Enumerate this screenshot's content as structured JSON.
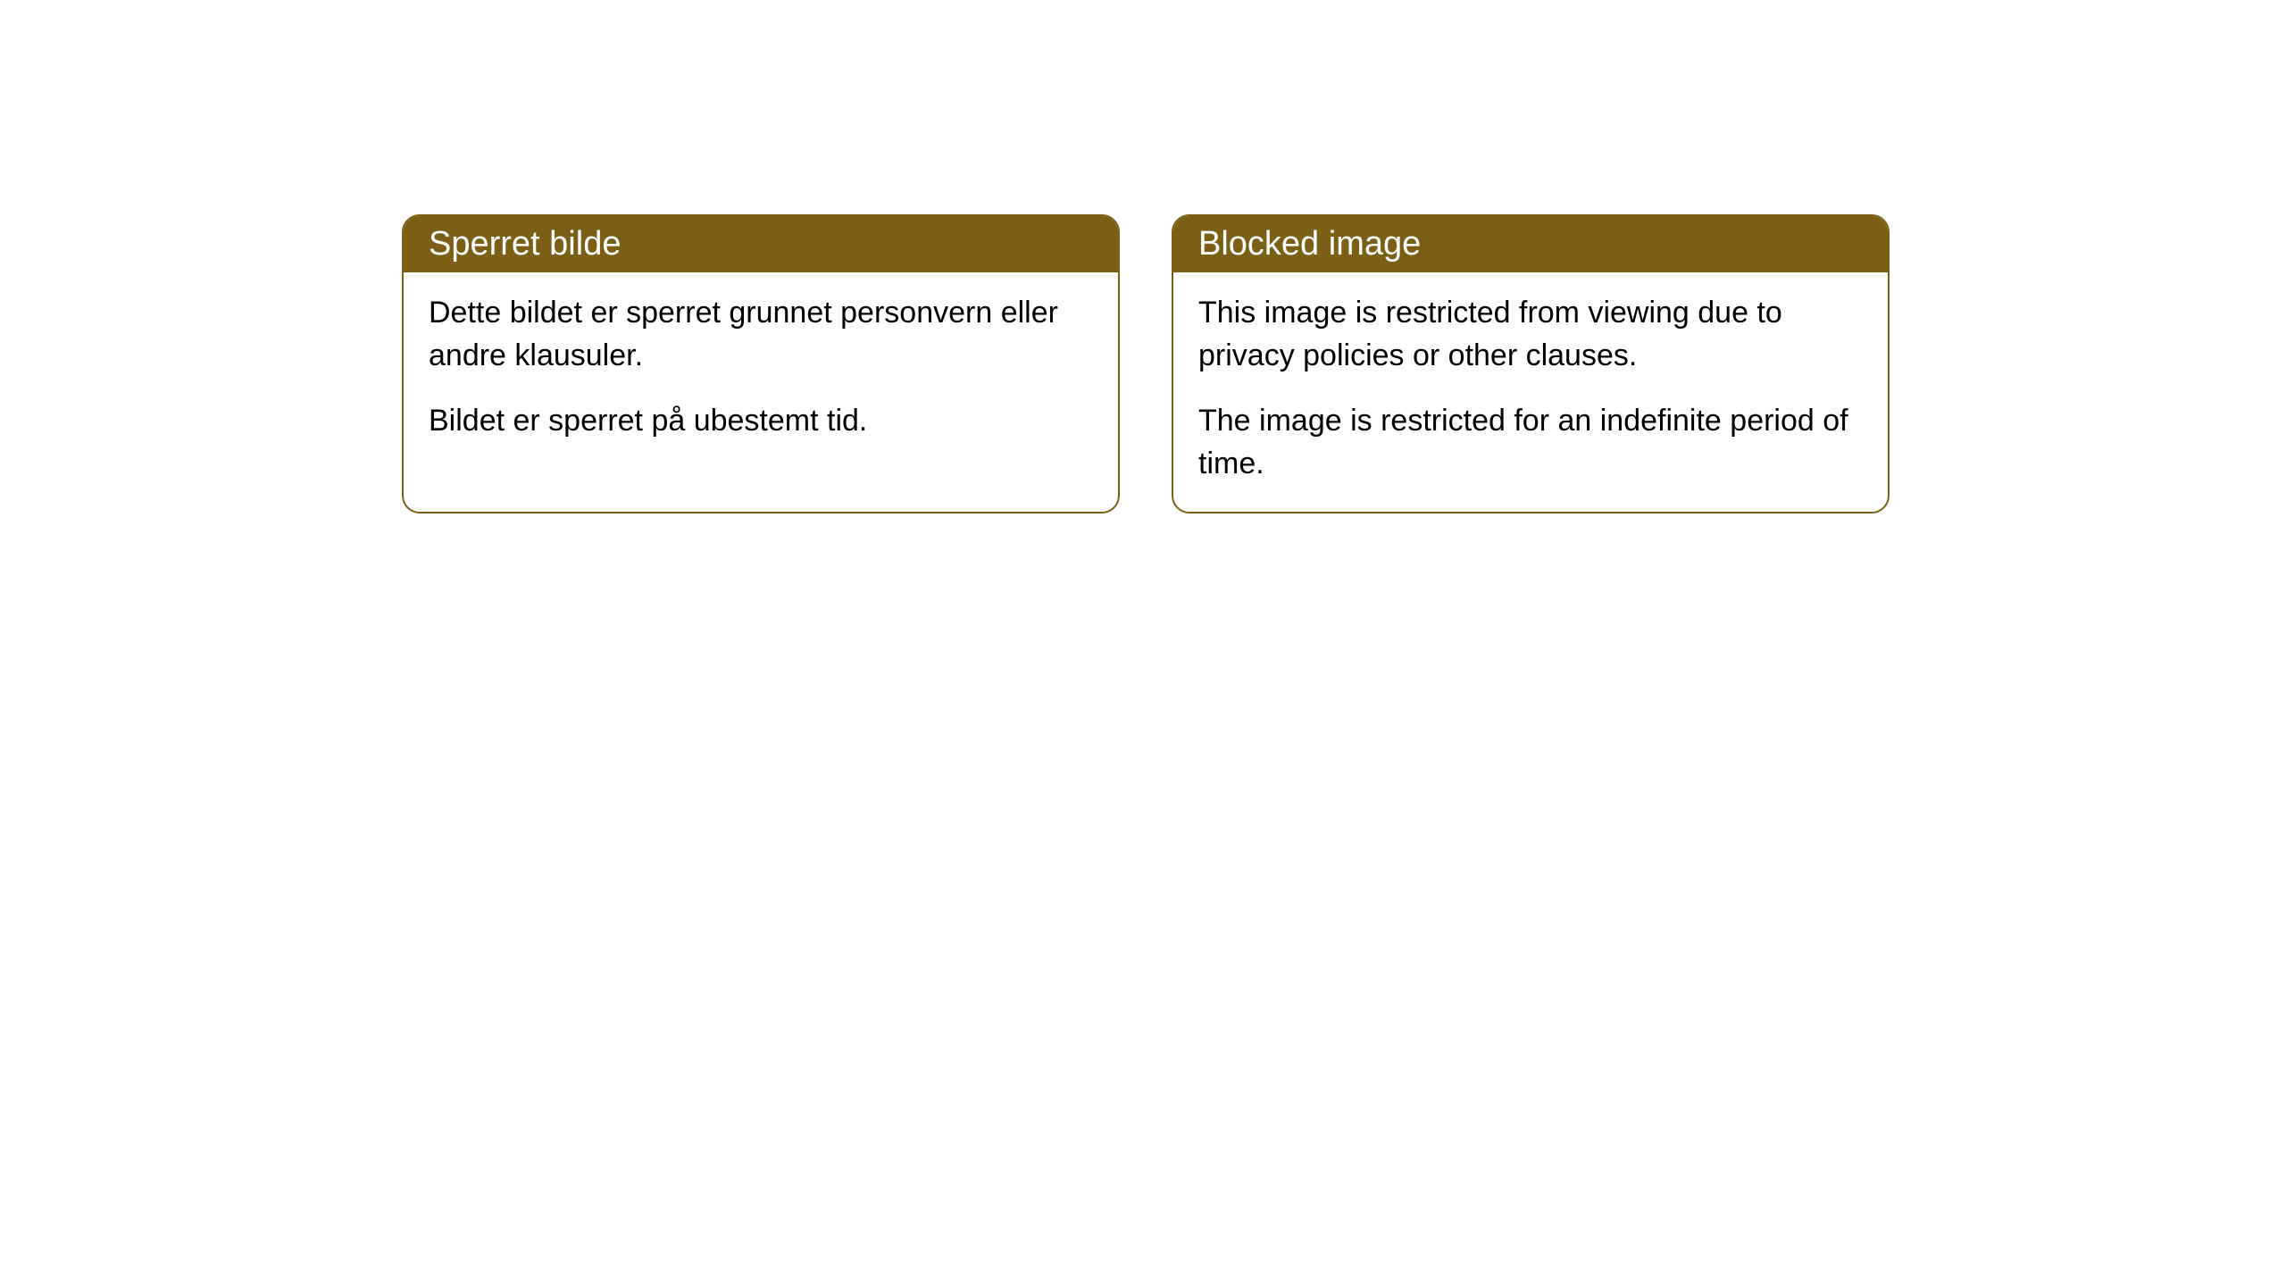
{
  "cards": [
    {
      "header": "Sperret bilde",
      "paragraph1": "Dette bildet er sperret grunnet personvern eller andre klausuler.",
      "paragraph2": "Bildet er sperret på ubestemt tid."
    },
    {
      "header": "Blocked image",
      "paragraph1": "This image is restricted from viewing due to privacy policies or other clauses.",
      "paragraph2": "The image is restricted for an indefinite period of time."
    }
  ],
  "styling": {
    "header_bg_color": "#7a5f14",
    "header_text_color": "#ffffff",
    "border_color": "#7a5f14",
    "body_text_color": "#000000",
    "card_bg_color": "#ffffff",
    "border_radius": 20,
    "header_fontsize": 38,
    "body_fontsize": 34
  }
}
